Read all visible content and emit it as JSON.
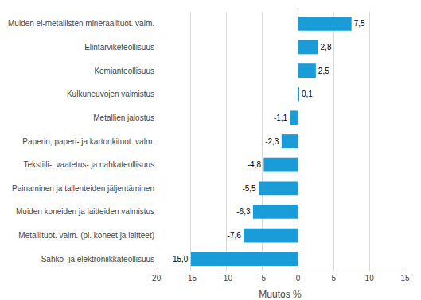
{
  "chart_data": {
    "type": "bar",
    "orientation": "horizontal",
    "categories": [
      "Muiden ei-metallisten mineraalituot. valm.",
      "Elintarviketeollisuus",
      "Kemianteollisuus",
      "Kulkuneuvojen valmistus",
      "Metallien jalostus",
      "Paperin, paperi- ja kartonkituot. valm.",
      "Tekstiili-, vaatetus- ja nahkateollisuus",
      "Painaminen ja tallenteiden jäljentäminen",
      "Muiden koneiden ja laitteiden valmistus",
      "Metallituot. valm. (pl. koneet ja laitteet)",
      "Sähkö- ja elektroniikkateollisuus"
    ],
    "values": [
      7.5,
      2.8,
      2.5,
      0.1,
      -1.1,
      -2.3,
      -4.8,
      -5.5,
      -6.3,
      -7.6,
      -15.0
    ],
    "value_labels": [
      "7,5",
      "2,8",
      "2,5",
      "0,1",
      "-1,1",
      "-2,3",
      "-4,8",
      "-5,5",
      "-6,3",
      "-7,6",
      "-15,0"
    ],
    "color": "#1a9cd8",
    "xlabel": "Muutos %",
    "xlim": [
      -20,
      15
    ],
    "xticks": [
      -20,
      -15,
      -10,
      -5,
      0,
      5,
      10,
      15
    ],
    "grid": true,
    "data_labels": true
  }
}
